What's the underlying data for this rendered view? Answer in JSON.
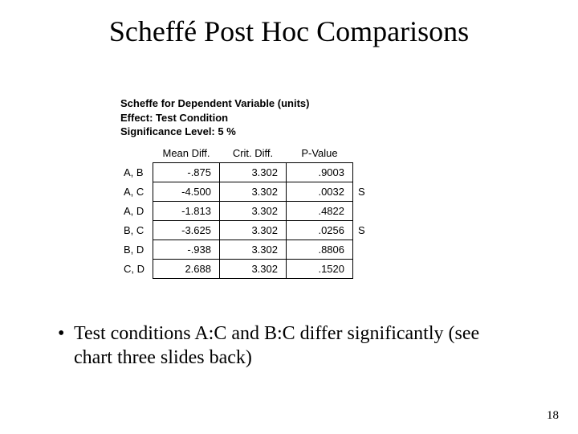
{
  "title": "Scheffé Post Hoc Comparisons",
  "table": {
    "header_line1": "Scheffe for Dependent Variable (units)",
    "header_line2": "Effect: Test Condition",
    "header_line3": "Significance Level: 5 %",
    "columns": [
      "Mean Diff.",
      "Crit. Diff.",
      "P-Value"
    ],
    "rows": [
      {
        "label": "A, B",
        "mean": "-.875",
        "crit": "3.302",
        "p": ".9003",
        "sig": ""
      },
      {
        "label": "A, C",
        "mean": "-4.500",
        "crit": "3.302",
        "p": ".0032",
        "sig": "S"
      },
      {
        "label": "A, D",
        "mean": "-1.813",
        "crit": "3.302",
        "p": ".4822",
        "sig": ""
      },
      {
        "label": "B, C",
        "mean": "-3.625",
        "crit": "3.302",
        "p": ".0256",
        "sig": "S"
      },
      {
        "label": "B, D",
        "mean": "-.938",
        "crit": "3.302",
        "p": ".8806",
        "sig": ""
      },
      {
        "label": "C, D",
        "mean": "2.688",
        "crit": "3.302",
        "p": ".1520",
        "sig": ""
      }
    ],
    "font_family": "Arial",
    "font_size_pt": 10,
    "border_color": "#000000",
    "background_color": "#ffffff"
  },
  "bullet": {
    "marker": "•",
    "text": "Test conditions A:C and B:C differ significantly (see chart three slides back)"
  },
  "page_number": "18",
  "colors": {
    "text": "#000000",
    "background": "#ffffff"
  }
}
